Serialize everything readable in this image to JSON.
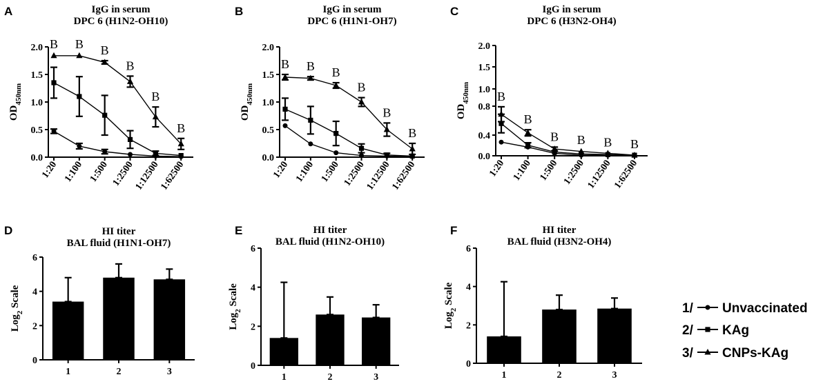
{
  "legend": [
    {
      "number": "1/",
      "label": "Unvaccinated",
      "marker": "circle"
    },
    {
      "number": "2/",
      "label": "KAg",
      "marker": "square"
    },
    {
      "number": "3/",
      "label": "CNPs-KAg",
      "marker": "triangle"
    }
  ],
  "chart_data": [
    {
      "panel": "A",
      "type": "line",
      "title": "IgG in serum",
      "subtitle": "DPC 6 (H1N2-OH10)",
      "ylabel": "OD450nm",
      "ylabel_main": "OD",
      "ylabel_sub": "450nm",
      "ylim": [
        0,
        2.0
      ],
      "yticks": [
        "0.0",
        "0.5",
        "1.0",
        "1.5",
        "2.0"
      ],
      "categories": [
        "1:20",
        "1:100",
        "1:500",
        "1:2500",
        "1:12500",
        "1:62500"
      ],
      "series": [
        {
          "name": "Unvaccinated",
          "marker": "circle",
          "values": [
            0.47,
            0.2,
            0.1,
            0.05,
            0.02,
            0.01
          ],
          "err": [
            0.04,
            0.05,
            0.04,
            0.02,
            0.01,
            0.01
          ]
        },
        {
          "name": "KAg",
          "marker": "square",
          "values": [
            1.35,
            1.1,
            0.76,
            0.32,
            0.07,
            0.03
          ],
          "err": [
            0.28,
            0.36,
            0.36,
            0.16,
            0.04,
            0.02
          ]
        },
        {
          "name": "CNPs-KAg",
          "marker": "triangle",
          "values": [
            1.84,
            1.84,
            1.72,
            1.37,
            0.73,
            0.24
          ],
          "err": [
            0.02,
            0.02,
            0.03,
            0.1,
            0.18,
            0.1
          ]
        }
      ],
      "annotations": [
        "B",
        "B",
        "B",
        "B",
        "B",
        "B"
      ]
    },
    {
      "panel": "B",
      "type": "line",
      "title": "IgG in serum",
      "subtitle": "DPC 6 (H1N1-OH7)",
      "ylabel": "OD450nm",
      "ylabel_main": "OD",
      "ylabel_sub": "450nm",
      "ylim": [
        0,
        2.0
      ],
      "yticks": [
        "0.0",
        "0.5",
        "1.0",
        "1.5",
        "2.0"
      ],
      "categories": [
        "1:20",
        "1:100",
        "1:500",
        "1:2500",
        "1:12500",
        "1:62500"
      ],
      "series": [
        {
          "name": "Unvaccinated",
          "marker": "circle",
          "values": [
            0.57,
            0.24,
            0.08,
            0.03,
            0.02,
            0.01
          ],
          "err": [
            0.02,
            0.02,
            0.01,
            0.01,
            0.01,
            0.01
          ]
        },
        {
          "name": "KAg",
          "marker": "square",
          "values": [
            0.87,
            0.67,
            0.43,
            0.16,
            0.04,
            0.02
          ],
          "err": [
            0.2,
            0.25,
            0.22,
            0.08,
            0.03,
            0.02
          ]
        },
        {
          "name": "CNPs-KAg",
          "marker": "triangle",
          "values": [
            1.45,
            1.43,
            1.3,
            1.0,
            0.5,
            0.15
          ],
          "err": [
            0.05,
            0.03,
            0.05,
            0.08,
            0.12,
            0.1
          ]
        }
      ],
      "annotations": [
        "B",
        "B",
        "B",
        "B",
        "B",
        "B"
      ]
    },
    {
      "panel": "C",
      "type": "line",
      "title": "IgG in serum",
      "subtitle": "DPC 6 (H3N2-OH4)",
      "ylabel": "OD450nm",
      "ylabel_main": "OD",
      "ylabel_sub": "450nm",
      "ylim": [
        0,
        2.0
      ],
      "yticks": [
        "0.0",
        "0.4",
        "0.8",
        "1.0",
        "1.5",
        "2.0"
      ],
      "categories": [
        "1:20",
        "1:100",
        "1:500",
        "1:2500",
        "1:12500",
        "1:62500"
      ],
      "series": [
        {
          "name": "Unvaccinated",
          "marker": "circle",
          "values": [
            0.22,
            0.14,
            0.04,
            0.01,
            0.01,
            0.01
          ],
          "err": [
            0.01,
            0.01,
            0.01,
            0.01,
            0.01,
            0.01
          ]
        },
        {
          "name": "KAg",
          "marker": "square",
          "values": [
            0.52,
            0.17,
            0.06,
            0.03,
            0.02,
            0.01
          ],
          "err": [
            0.15,
            0.04,
            0.02,
            0.01,
            0.01,
            0.01
          ]
        },
        {
          "name": "CNPs-KAg",
          "marker": "triangle",
          "values": [
            0.67,
            0.37,
            0.11,
            0.07,
            0.04,
            0.01
          ],
          "err": [
            0.12,
            0.05,
            0.03,
            0.02,
            0.01,
            0.01
          ]
        }
      ],
      "annotations": [
        "B",
        "B",
        "B",
        "B",
        "B",
        "B"
      ]
    },
    {
      "panel": "D",
      "type": "bar",
      "title": "HI titer",
      "subtitle": "BAL fluid (H1N1-OH7)",
      "ylabel": "Log2 Scale",
      "ylabel_main": "Log",
      "ylabel_sub": "2",
      "ylabel_rest": " Scale",
      "ylim": [
        0,
        6
      ],
      "yticks": [
        "0",
        "2",
        "4",
        "6"
      ],
      "categories": [
        "1",
        "2",
        "3"
      ],
      "values": [
        3.4,
        4.8,
        4.7
      ],
      "err": [
        1.4,
        0.8,
        0.6
      ]
    },
    {
      "panel": "E",
      "type": "bar",
      "title": "HI titer",
      "subtitle": "BAL fluid (H1N2-OH10)",
      "ylabel": "Log2 Scale",
      "ylabel_main": "Log",
      "ylabel_sub": "2",
      "ylabel_rest": " Scale",
      "ylim": [
        0,
        6
      ],
      "yticks": [
        "0",
        "2",
        "4",
        "6"
      ],
      "categories": [
        "1",
        "2",
        "3"
      ],
      "values": [
        1.4,
        2.6,
        2.45
      ],
      "err": [
        2.85,
        0.9,
        0.65
      ]
    },
    {
      "panel": "F",
      "type": "bar",
      "title": "HI titer",
      "subtitle": "BAL fluid (H3N2-OH4)",
      "ylabel": "Log2 Scale",
      "ylabel_main": "Log",
      "ylabel_sub": "2",
      "ylabel_rest": " Scale",
      "ylim": [
        0,
        6
      ],
      "yticks": [
        "0",
        "2",
        "4",
        "6"
      ],
      "categories": [
        "1",
        "2",
        "3"
      ],
      "values": [
        1.4,
        2.8,
        2.85
      ],
      "err": [
        2.85,
        0.75,
        0.55
      ]
    }
  ]
}
